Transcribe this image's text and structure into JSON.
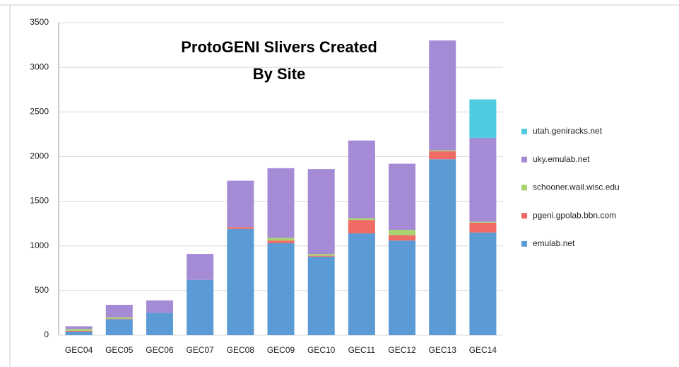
{
  "chart_data": {
    "type": "stacked_bar",
    "title": [
      "ProtoGENI Slivers Created",
      "By Site"
    ],
    "categories": [
      "GEC04",
      "GEC05",
      "GEC06",
      "GEC07",
      "GEC08",
      "GEC09",
      "GEC10",
      "GEC11",
      "GEC12",
      "GEC13",
      "GEC14"
    ],
    "series": [
      {
        "name": "emulab.net",
        "color": "#5b9bd5",
        "values": [
          40,
          180,
          250,
          620,
          1190,
          1030,
          880,
          1140,
          1060,
          1970,
          1150
        ]
      },
      {
        "name": "pgeni.gpolab.bbn.com",
        "color": "#ef6b63",
        "values": [
          10,
          5,
          0,
          0,
          20,
          30,
          10,
          150,
          60,
          90,
          110
        ]
      },
      {
        "name": "schooner.wail.wisc.edu",
        "color": "#a8d46f",
        "values": [
          20,
          15,
          0,
          0,
          0,
          30,
          20,
          20,
          60,
          10,
          10
        ]
      },
      {
        "name": "uky.emulab.net",
        "color": "#a58bd6",
        "values": [
          30,
          140,
          140,
          290,
          520,
          780,
          950,
          870,
          740,
          1230,
          940
        ]
      },
      {
        "name": "utah.geniracks.net",
        "color": "#4fcbe0",
        "values": [
          0,
          0,
          0,
          0,
          0,
          0,
          0,
          0,
          0,
          0,
          430
        ]
      }
    ],
    "ylim": [
      0,
      3500
    ],
    "yticks": [
      0,
      500,
      1000,
      1500,
      2000,
      2500,
      3000,
      3500
    ],
    "grid": true,
    "legend": "right"
  }
}
